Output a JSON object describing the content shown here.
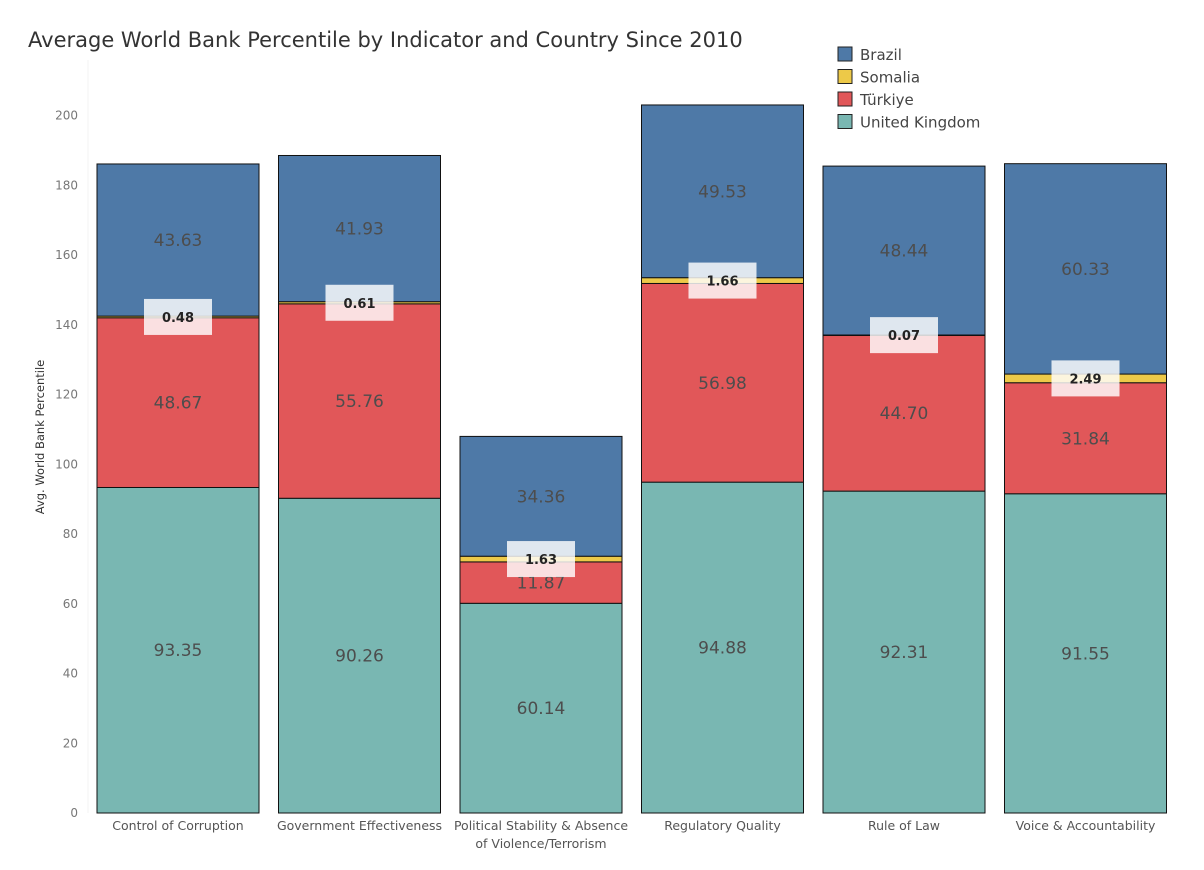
{
  "chart_data": {
    "type": "bar",
    "stacked": true,
    "title": "Average World Bank Percentile by Indicator and Country Since 2010",
    "xlabel": "",
    "ylabel": "Avg. World Bank Percentile",
    "ylim": [
      0,
      210
    ],
    "yticks": [
      0,
      20,
      40,
      60,
      80,
      100,
      120,
      140,
      160,
      180,
      200
    ],
    "grid": false,
    "legend_position": "top-right",
    "categories": [
      [
        "Control of Corruption"
      ],
      [
        "Government Effectiveness"
      ],
      [
        "Political Stability & Absence",
        "of Violence/Terrorism"
      ],
      [
        "Regulatory Quality"
      ],
      [
        "Rule of Law"
      ],
      [
        "Voice & Accountability"
      ]
    ],
    "series": [
      {
        "name": "United Kingdom",
        "color": "#79b7b2",
        "values": [
          93.35,
          90.26,
          60.14,
          94.88,
          92.31,
          91.55
        ],
        "labels": [
          "93.35",
          "90.26",
          "60.14",
          "94.88",
          "92.31",
          "91.55"
        ]
      },
      {
        "name": "Türkiye",
        "color": "#e15759",
        "values": [
          48.67,
          55.76,
          11.87,
          56.98,
          44.7,
          31.84
        ],
        "labels": [
          "48.67",
          "55.76",
          "11.87",
          "56.98",
          "44.70",
          "31.84"
        ]
      },
      {
        "name": "Somalia",
        "color": "#edc948",
        "values": [
          0.48,
          0.61,
          1.63,
          1.66,
          0.07,
          2.49
        ],
        "labels": [
          "0.48",
          "0.61",
          "1.63",
          "1.66",
          "0.07",
          "2.49"
        ]
      },
      {
        "name": "Brazil",
        "color": "#4e79a7",
        "values": [
          43.63,
          41.93,
          34.36,
          49.53,
          48.44,
          60.33
        ],
        "labels": [
          "43.63",
          "41.93",
          "34.36",
          "49.53",
          "48.44",
          "60.33"
        ]
      }
    ],
    "legend": [
      "Brazil",
      "Somalia",
      "Türkiye",
      "United Kingdom"
    ]
  }
}
